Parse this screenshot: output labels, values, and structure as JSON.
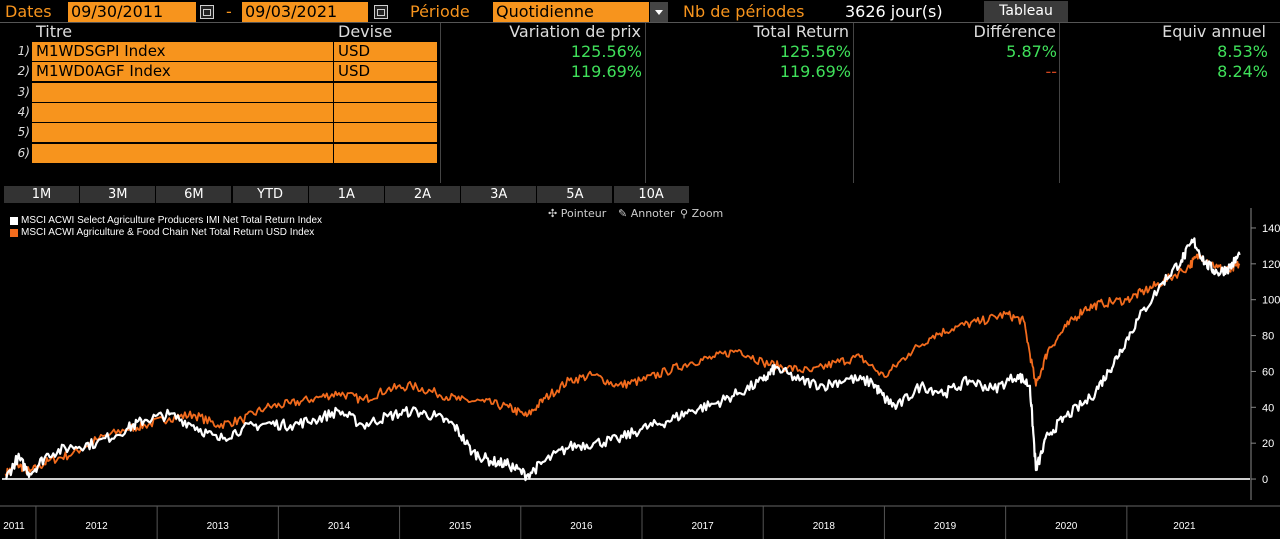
{
  "toolbar": {
    "dates_label": "Dates",
    "start_date": "09/30/2011",
    "separator": "-",
    "end_date": "09/03/2021",
    "period_label": "Période",
    "period_value": "Quotidienne",
    "nb_label": "Nb de périodes",
    "nb_value": "3626 jour(s)",
    "table_button": "Tableau"
  },
  "table": {
    "headers": [
      "Titre",
      "Devise",
      "Variation de prix",
      "Total Return",
      "Différence",
      "Equiv annuel"
    ],
    "rows": [
      {
        "num": "1)",
        "title": "M1WDSGPI Index",
        "currency": "USD",
        "price_var": "125.56%",
        "total_return": "125.56%",
        "difference": "5.87%",
        "annual": "8.53%"
      },
      {
        "num": "2)",
        "title": "M1WD0AGF Index",
        "currency": "USD",
        "price_var": "119.69%",
        "total_return": "119.69%",
        "difference": "--",
        "annual": "8.24%"
      },
      {
        "num": "3)",
        "title": "",
        "currency": "",
        "price_var": "",
        "total_return": "",
        "difference": "",
        "annual": ""
      },
      {
        "num": "4)",
        "title": "",
        "currency": "",
        "price_var": "",
        "total_return": "",
        "difference": "",
        "annual": ""
      },
      {
        "num": "5)",
        "title": "",
        "currency": "",
        "price_var": "",
        "total_return": "",
        "difference": "",
        "annual": ""
      },
      {
        "num": "6)",
        "title": "",
        "currency": "",
        "price_var": "",
        "total_return": "",
        "difference": "",
        "annual": ""
      }
    ]
  },
  "periods": [
    "1M",
    "3M",
    "6M",
    "YTD",
    "1A",
    "2A",
    "3A",
    "5A",
    "10A"
  ],
  "chart_tools": {
    "pointer": "Pointeur",
    "annotate": "Annoter",
    "zoom": "Zoom"
  },
  "colors": {
    "accent": "#f7941d",
    "positive": "#3fe05a",
    "series1": "#ffffff",
    "series2": "#f26b1d"
  },
  "chart_data": {
    "type": "line",
    "xlabel": "",
    "ylabel": "",
    "ylim": [
      -5,
      145
    ],
    "yticks": [
      0,
      20,
      40,
      60,
      80,
      100,
      120,
      140
    ],
    "xticks": [
      "2011",
      "2012",
      "2013",
      "2014",
      "2015",
      "2016",
      "2017",
      "2018",
      "2019",
      "2020",
      "2021"
    ],
    "legend_position": "top-left",
    "grid": false,
    "series": [
      {
        "name": "MSCI ACWI Select Agriculture Producers IMI Net Total Return Index",
        "color": "#ffffff",
        "points": [
          [
            2011.75,
            0
          ],
          [
            2011.85,
            12
          ],
          [
            2011.95,
            3
          ],
          [
            2012.1,
            14
          ],
          [
            2012.3,
            18
          ],
          [
            2012.5,
            20
          ],
          [
            2012.75,
            28
          ],
          [
            2012.9,
            33
          ],
          [
            2013.1,
            36
          ],
          [
            2013.3,
            30
          ],
          [
            2013.5,
            22
          ],
          [
            2013.7,
            28
          ],
          [
            2013.9,
            31
          ],
          [
            2014.1,
            30
          ],
          [
            2014.3,
            33
          ],
          [
            2014.5,
            38
          ],
          [
            2014.7,
            30
          ],
          [
            2014.9,
            35
          ],
          [
            2015.1,
            38
          ],
          [
            2015.3,
            35
          ],
          [
            2015.45,
            30
          ],
          [
            2015.6,
            15
          ],
          [
            2015.75,
            10
          ],
          [
            2015.9,
            8
          ],
          [
            2016.05,
            2
          ],
          [
            2016.2,
            10
          ],
          [
            2016.4,
            18
          ],
          [
            2016.6,
            20
          ],
          [
            2016.8,
            22
          ],
          [
            2017.0,
            28
          ],
          [
            2017.2,
            32
          ],
          [
            2017.4,
            38
          ],
          [
            2017.6,
            42
          ],
          [
            2017.8,
            48
          ],
          [
            2018.0,
            55
          ],
          [
            2018.1,
            62
          ],
          [
            2018.3,
            55
          ],
          [
            2018.5,
            52
          ],
          [
            2018.7,
            56
          ],
          [
            2018.9,
            54
          ],
          [
            2019.0,
            45
          ],
          [
            2019.1,
            40
          ],
          [
            2019.3,
            52
          ],
          [
            2019.5,
            48
          ],
          [
            2019.7,
            55
          ],
          [
            2019.9,
            50
          ],
          [
            2020.1,
            58
          ],
          [
            2020.2,
            52
          ],
          [
            2020.25,
            5
          ],
          [
            2020.35,
            25
          ],
          [
            2020.5,
            35
          ],
          [
            2020.7,
            45
          ],
          [
            2020.85,
            60
          ],
          [
            2020.95,
            72
          ],
          [
            2021.1,
            90
          ],
          [
            2021.3,
            110
          ],
          [
            2021.45,
            122
          ],
          [
            2021.55,
            133
          ],
          [
            2021.65,
            120
          ],
          [
            2021.75,
            115
          ],
          [
            2021.85,
            118
          ],
          [
            2021.93,
            125
          ]
        ]
      },
      {
        "name": "MSCI ACWI Agriculture & Food Chain Net Total Return USD Index",
        "color": "#f26b1d",
        "points": [
          [
            2011.75,
            3
          ],
          [
            2011.85,
            8
          ],
          [
            2011.95,
            4
          ],
          [
            2012.1,
            10
          ],
          [
            2012.3,
            14
          ],
          [
            2012.5,
            22
          ],
          [
            2012.75,
            28
          ],
          [
            2012.9,
            30
          ],
          [
            2013.1,
            34
          ],
          [
            2013.3,
            36
          ],
          [
            2013.5,
            30
          ],
          [
            2013.7,
            33
          ],
          [
            2013.9,
            40
          ],
          [
            2014.1,
            42
          ],
          [
            2014.3,
            45
          ],
          [
            2014.5,
            48
          ],
          [
            2014.7,
            44
          ],
          [
            2014.9,
            50
          ],
          [
            2015.1,
            52
          ],
          [
            2015.3,
            48
          ],
          [
            2015.5,
            44
          ],
          [
            2015.7,
            43
          ],
          [
            2015.9,
            40
          ],
          [
            2016.05,
            35
          ],
          [
            2016.2,
            45
          ],
          [
            2016.4,
            55
          ],
          [
            2016.6,
            58
          ],
          [
            2016.8,
            52
          ],
          [
            2017.0,
            55
          ],
          [
            2017.2,
            60
          ],
          [
            2017.4,
            65
          ],
          [
            2017.6,
            68
          ],
          [
            2017.8,
            72
          ],
          [
            2018.0,
            65
          ],
          [
            2018.2,
            62
          ],
          [
            2018.4,
            60
          ],
          [
            2018.6,
            65
          ],
          [
            2018.8,
            68
          ],
          [
            2019.0,
            57
          ],
          [
            2019.2,
            70
          ],
          [
            2019.4,
            80
          ],
          [
            2019.6,
            85
          ],
          [
            2019.8,
            88
          ],
          [
            2020.0,
            92
          ],
          [
            2020.15,
            88
          ],
          [
            2020.25,
            52
          ],
          [
            2020.35,
            72
          ],
          [
            2020.5,
            85
          ],
          [
            2020.65,
            95
          ],
          [
            2020.8,
            98
          ],
          [
            2021.0,
            100
          ],
          [
            2021.15,
            105
          ],
          [
            2021.3,
            110
          ],
          [
            2021.5,
            118
          ],
          [
            2021.6,
            125
          ],
          [
            2021.75,
            118
          ],
          [
            2021.85,
            116
          ],
          [
            2021.93,
            120
          ]
        ]
      }
    ]
  }
}
